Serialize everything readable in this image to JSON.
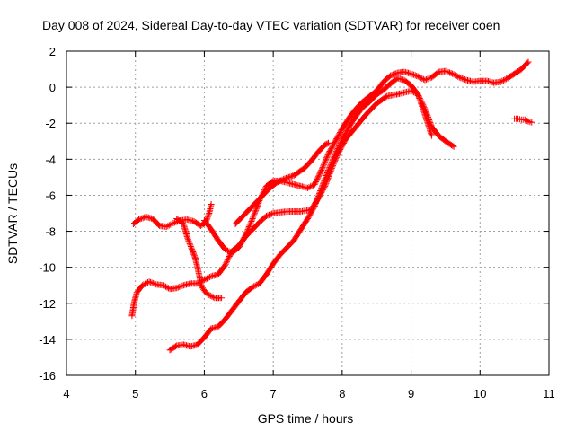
{
  "chart_data": {
    "type": "scatter",
    "title": "Day 008 of 2024, Sidereal Day-to-day VTEC variation (SDTVAR) for receiver coen",
    "xlabel": "GPS time / hours",
    "ylabel": "SDTVAR / TECUs",
    "xlim": [
      4,
      11
    ],
    "ylim": [
      -16,
      2
    ],
    "xticks": [
      "4",
      "5",
      "6",
      "7",
      "8",
      "9",
      "10",
      "11"
    ],
    "yticks": [
      "-16",
      "-14",
      "-12",
      "-10",
      "-8",
      "-6",
      "-4",
      "-2",
      "0",
      "2"
    ],
    "grid": true,
    "marker": "+",
    "color": "#ff0000",
    "series": [
      {
        "name": "track-a",
        "points": [
          [
            4.97,
            -7.6
          ],
          [
            5.05,
            -7.35
          ],
          [
            5.15,
            -7.2
          ],
          [
            5.25,
            -7.3
          ],
          [
            5.35,
            -7.7
          ],
          [
            5.45,
            -7.75
          ],
          [
            5.55,
            -7.55
          ],
          [
            5.65,
            -7.4
          ],
          [
            5.75,
            -7.35
          ],
          [
            5.85,
            -7.45
          ],
          [
            5.95,
            -7.7
          ],
          [
            6.02,
            -7.5
          ],
          [
            6.07,
            -7.0
          ],
          [
            6.1,
            -6.5
          ]
        ]
      },
      {
        "name": "track-b",
        "points": [
          [
            5.6,
            -7.3
          ],
          [
            5.7,
            -7.6
          ],
          [
            5.75,
            -8.3
          ],
          [
            5.82,
            -9.0
          ],
          [
            5.87,
            -9.5
          ],
          [
            5.9,
            -10.0
          ],
          [
            5.93,
            -10.5
          ],
          [
            5.95,
            -11.0
          ],
          [
            6.0,
            -11.3
          ],
          [
            6.05,
            -11.5
          ],
          [
            6.15,
            -11.7
          ],
          [
            6.25,
            -11.7
          ]
        ]
      },
      {
        "name": "track-c",
        "points": [
          [
            4.95,
            -12.7
          ],
          [
            4.98,
            -12.0
          ],
          [
            5.02,
            -11.4
          ],
          [
            5.1,
            -11.0
          ],
          [
            5.2,
            -10.8
          ],
          [
            5.3,
            -10.95
          ],
          [
            5.4,
            -11.0
          ],
          [
            5.5,
            -11.2
          ],
          [
            5.6,
            -11.15
          ],
          [
            5.7,
            -11.0
          ],
          [
            5.8,
            -10.9
          ],
          [
            5.9,
            -10.9
          ],
          [
            6.0,
            -10.7
          ],
          [
            6.1,
            -10.5
          ],
          [
            6.2,
            -10.4
          ],
          [
            6.3,
            -9.9
          ],
          [
            6.4,
            -9.1
          ],
          [
            6.5,
            -8.8
          ],
          [
            6.6,
            -8.3
          ],
          [
            6.7,
            -7.9
          ],
          [
            6.8,
            -7.5
          ],
          [
            6.9,
            -7.15
          ],
          [
            7.0,
            -7.0
          ],
          [
            7.2,
            -6.9
          ],
          [
            7.4,
            -6.9
          ],
          [
            7.55,
            -6.8
          ],
          [
            7.65,
            -6.2
          ],
          [
            7.75,
            -5.5
          ],
          [
            7.85,
            -4.5
          ],
          [
            7.95,
            -3.6
          ],
          [
            8.05,
            -2.9
          ],
          [
            8.2,
            -2.2
          ],
          [
            8.35,
            -1.5
          ],
          [
            8.5,
            -0.9
          ],
          [
            8.65,
            -0.5
          ],
          [
            8.85,
            -0.35
          ],
          [
            9.0,
            -0.2
          ],
          [
            9.1,
            -0.4
          ],
          [
            9.2,
            -1.2
          ],
          [
            9.3,
            -2.2
          ],
          [
            9.4,
            -2.7
          ],
          [
            9.5,
            -3.0
          ],
          [
            9.62,
            -3.3
          ]
        ]
      },
      {
        "name": "track-d",
        "points": [
          [
            6.0,
            -7.4
          ],
          [
            6.1,
            -7.9
          ],
          [
            6.2,
            -8.5
          ],
          [
            6.3,
            -9.0
          ],
          [
            6.4,
            -9.2
          ],
          [
            6.5,
            -8.9
          ],
          [
            6.6,
            -8.2
          ],
          [
            6.7,
            -7.3
          ],
          [
            6.8,
            -6.3
          ],
          [
            6.9,
            -5.5
          ],
          [
            7.0,
            -5.2
          ],
          [
            7.1,
            -5.2
          ],
          [
            7.2,
            -5.3
          ],
          [
            7.3,
            -5.4
          ],
          [
            7.4,
            -5.5
          ],
          [
            7.5,
            -5.6
          ],
          [
            7.6,
            -5.4
          ],
          [
            7.7,
            -4.6
          ],
          [
            7.8,
            -3.7
          ],
          [
            7.9,
            -3.0
          ],
          [
            8.0,
            -2.3
          ],
          [
            8.1,
            -1.7
          ],
          [
            8.2,
            -1.2
          ],
          [
            8.3,
            -0.8
          ],
          [
            8.4,
            -0.5
          ],
          [
            8.5,
            -0.2
          ],
          [
            8.6,
            0.3
          ],
          [
            8.7,
            0.65
          ],
          [
            8.8,
            0.8
          ],
          [
            8.9,
            0.85
          ],
          [
            9.0,
            0.75
          ],
          [
            9.1,
            0.6
          ],
          [
            9.2,
            0.4
          ],
          [
            9.3,
            0.55
          ],
          [
            9.4,
            0.85
          ],
          [
            9.5,
            0.9
          ],
          [
            9.6,
            0.75
          ],
          [
            9.7,
            0.55
          ],
          [
            9.8,
            0.4
          ],
          [
            9.9,
            0.3
          ],
          [
            10.0,
            0.35
          ],
          [
            10.1,
            0.35
          ],
          [
            10.2,
            0.25
          ],
          [
            10.3,
            0.3
          ],
          [
            10.4,
            0.5
          ],
          [
            10.5,
            0.75
          ],
          [
            10.6,
            1.0
          ],
          [
            10.7,
            1.4
          ]
        ]
      },
      {
        "name": "track-e",
        "points": [
          [
            5.5,
            -14.6
          ],
          [
            5.6,
            -14.35
          ],
          [
            5.7,
            -14.3
          ],
          [
            5.8,
            -14.4
          ],
          [
            5.9,
            -14.3
          ],
          [
            6.0,
            -13.9
          ],
          [
            6.1,
            -13.4
          ],
          [
            6.2,
            -13.3
          ],
          [
            6.3,
            -12.9
          ],
          [
            6.4,
            -12.4
          ],
          [
            6.5,
            -11.9
          ],
          [
            6.6,
            -11.4
          ],
          [
            6.7,
            -11.1
          ],
          [
            6.8,
            -10.9
          ],
          [
            6.9,
            -10.4
          ],
          [
            7.0,
            -9.8
          ],
          [
            7.1,
            -9.3
          ],
          [
            7.2,
            -8.9
          ],
          [
            7.3,
            -8.5
          ],
          [
            7.4,
            -7.9
          ],
          [
            7.5,
            -7.3
          ],
          [
            7.6,
            -6.6
          ],
          [
            7.7,
            -5.6
          ],
          [
            7.8,
            -4.6
          ],
          [
            7.9,
            -3.7
          ],
          [
            8.0,
            -2.9
          ],
          [
            8.1,
            -2.2
          ],
          [
            8.2,
            -1.6
          ],
          [
            8.3,
            -1.1
          ],
          [
            8.4,
            -0.8
          ],
          [
            8.5,
            -0.4
          ],
          [
            8.6,
            -0.15
          ],
          [
            8.7,
            0.2
          ],
          [
            8.8,
            0.5
          ],
          [
            8.9,
            0.4
          ],
          [
            9.0,
            0.1
          ],
          [
            9.1,
            -0.4
          ],
          [
            9.2,
            -1.5
          ],
          [
            9.3,
            -2.7
          ]
        ]
      },
      {
        "name": "track-f",
        "points": [
          [
            6.45,
            -7.6
          ],
          [
            6.55,
            -7.2
          ],
          [
            6.65,
            -6.8
          ],
          [
            6.75,
            -6.4
          ],
          [
            6.85,
            -6.0
          ],
          [
            6.95,
            -5.6
          ],
          [
            7.05,
            -5.3
          ],
          [
            7.15,
            -5.1
          ],
          [
            7.3,
            -4.9
          ],
          [
            7.45,
            -4.5
          ],
          [
            7.55,
            -4.1
          ],
          [
            7.65,
            -3.6
          ],
          [
            7.75,
            -3.2
          ],
          [
            7.8,
            -3.1
          ]
        ]
      },
      {
        "name": "track-g",
        "points": [
          [
            10.5,
            -1.75
          ],
          [
            10.55,
            -1.75
          ],
          [
            10.6,
            -1.8
          ],
          [
            10.65,
            -1.8
          ],
          [
            10.7,
            -1.9
          ],
          [
            10.75,
            -1.95
          ]
        ]
      }
    ]
  }
}
